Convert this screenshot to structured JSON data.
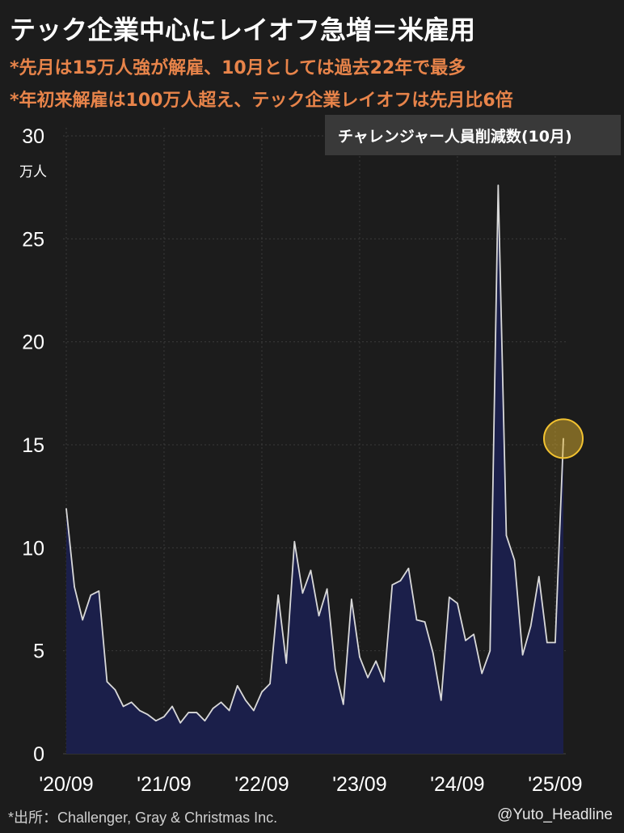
{
  "header": {
    "title": "テック企業中心にレイオフ急増＝米雇用",
    "subtitle_1": "*先月は15万人強が解雇、10月としては過去22年で最多",
    "subtitle_2": "*年初来解雇は100万人超え、テック企業レイオフは先月比6倍"
  },
  "legend": {
    "label": "チャレンジャー人員削減数(10月)"
  },
  "footer": {
    "source": "*出所：Challenger, Gray & Christmas Inc.",
    "handle": "@Yuto_Headline"
  },
  "colors": {
    "background": "#1c1c1c",
    "area_fill": "#1b1f4a",
    "line": "#d9d9d9",
    "accent": "#e8844a",
    "highlight": "#f2c230"
  },
  "chart_data": {
    "type": "area",
    "title": "チャレンジャー人員削減数(10月)",
    "ylabel": "万人",
    "ylim": [
      0,
      30
    ],
    "yticks": [
      0,
      5,
      10,
      15,
      20,
      25,
      30
    ],
    "x_tick_labels": [
      "'20/09",
      "'21/09",
      "'22/09",
      "'23/09",
      "'24/09",
      "'25/09"
    ],
    "x_tick_months": [
      "2020-09",
      "2021-09",
      "2022-09",
      "2023-09",
      "2024-09",
      "2025-09"
    ],
    "grid": true,
    "highlight": {
      "month": "2025-10",
      "value": 15.3
    },
    "series": [
      {
        "months": [
          "2020-09",
          "2020-10",
          "2020-11",
          "2020-12",
          "2021-01",
          "2021-02",
          "2021-03",
          "2021-04",
          "2021-05",
          "2021-06",
          "2021-07",
          "2021-08",
          "2021-09",
          "2021-10",
          "2021-11",
          "2021-12",
          "2022-01",
          "2022-02",
          "2022-03",
          "2022-04",
          "2022-05",
          "2022-06",
          "2022-07",
          "2022-08",
          "2022-09",
          "2022-10",
          "2022-11",
          "2022-12",
          "2023-01",
          "2023-02",
          "2023-03",
          "2023-04",
          "2023-05",
          "2023-06",
          "2023-07",
          "2023-08",
          "2023-09",
          "2023-10",
          "2023-11",
          "2023-12",
          "2024-01",
          "2024-02",
          "2024-03",
          "2024-04",
          "2024-05",
          "2024-06",
          "2024-07",
          "2024-08",
          "2024-09",
          "2024-10",
          "2024-11",
          "2024-12",
          "2025-01",
          "2025-02",
          "2025-03",
          "2025-04",
          "2025-05",
          "2025-06",
          "2025-07",
          "2025-08",
          "2025-09",
          "2025-10"
        ],
        "values": [
          11.9,
          8.1,
          6.5,
          7.7,
          7.9,
          3.5,
          3.1,
          2.3,
          2.5,
          2.1,
          1.9,
          1.6,
          1.8,
          2.3,
          1.5,
          2.0,
          2.0,
          1.6,
          2.2,
          2.5,
          2.1,
          3.3,
          2.6,
          2.1,
          3.0,
          3.4,
          7.7,
          4.4,
          10.3,
          7.8,
          8.9,
          6.7,
          8.0,
          4.1,
          2.4,
          7.5,
          4.7,
          3.7,
          4.5,
          3.5,
          8.2,
          8.4,
          9.0,
          6.5,
          6.4,
          4.9,
          2.6,
          7.6,
          7.3,
          5.5,
          5.8,
          3.9,
          5.0,
          27.6,
          10.6,
          9.4,
          4.8,
          6.2,
          8.6,
          5.4,
          5.4,
          15.3
        ]
      }
    ]
  }
}
